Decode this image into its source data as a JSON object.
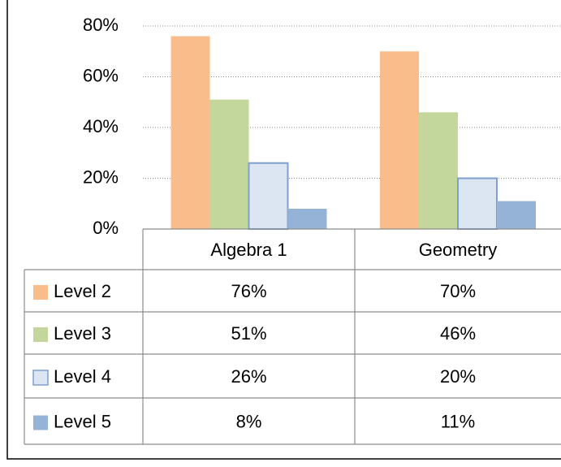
{
  "chart_data": {
    "type": "bar",
    "categories": [
      "Algebra 1",
      "Geometry"
    ],
    "series": [
      {
        "name": "Level 2",
        "color": "#f9bd8c",
        "values": [
          76,
          70
        ],
        "value_labels": [
          "76%",
          "70%"
        ]
      },
      {
        "name": "Level 3",
        "color": "#c3d69b",
        "values": [
          51,
          46
        ],
        "value_labels": [
          "51%",
          "46%"
        ]
      },
      {
        "name": "Level 4",
        "color": "#dce6f2",
        "values": [
          26,
          20
        ],
        "value_labels": [
          "26%",
          "20%"
        ]
      },
      {
        "name": "Level 5",
        "color": "#95b3d7",
        "values": [
          8,
          11
        ],
        "value_labels": [
          "8%",
          "11%"
        ]
      }
    ],
    "ylim": [
      0,
      80
    ],
    "yticks": [
      {
        "value": 0,
        "label": "0%"
      },
      {
        "value": 20,
        "label": "20%"
      },
      {
        "value": 40,
        "label": "40%"
      },
      {
        "value": 60,
        "label": "60%"
      },
      {
        "value": 80,
        "label": "80%"
      }
    ],
    "grid": true
  }
}
